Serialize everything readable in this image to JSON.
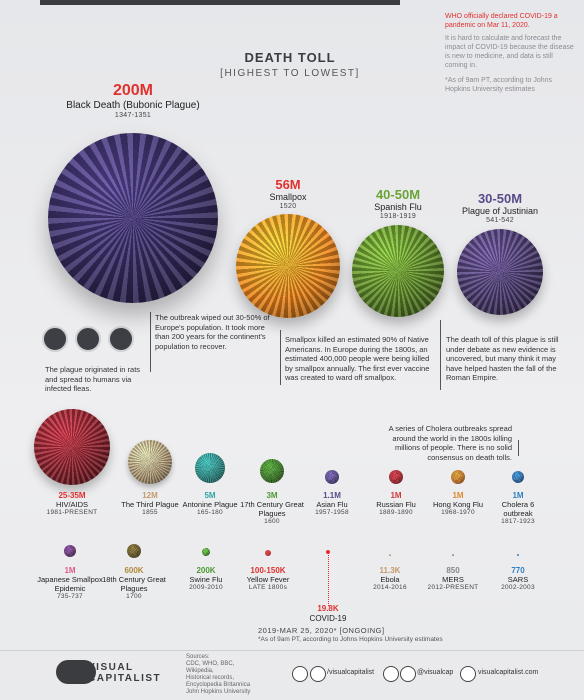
{
  "top_note": {
    "highlight": "WHO officially declared COVID-19 a pandemic on Mar 11, 2020.",
    "body": "It is hard to calculate and forecast the impact of COVID-19 because the disease is new to medicine, and data is still coming in.",
    "footnote": "*As of 9am PT, according to Johns Hopkins University estimates"
  },
  "title": "DEATH TOLL",
  "subtitle": "[HIGHEST TO LOWEST]",
  "pandemics": [
    {
      "toll": "200M",
      "name": "Black Death (Bubonic Plague)",
      "years": "1347-1351",
      "color": "#3b2f66",
      "toll_color": "#e0312f"
    },
    {
      "toll": "56M",
      "name": "Smallpox",
      "years": "1520",
      "color": "#f28a1e",
      "toll_color": "#e0312f"
    },
    {
      "toll": "40-50M",
      "name": "Spanish Flu",
      "years": "1918-1919",
      "color": "#5f8a2a",
      "toll_color": "#6aa336"
    },
    {
      "toll": "30-50M",
      "name": "Plague of Justinian",
      "years": "541-542",
      "color": "#4d3d70",
      "toll_color": "#5a4a8a"
    },
    {
      "toll": "25-35M",
      "name": "HIV/AIDS",
      "years": "1981-PRESENT",
      "color": "#8e2430",
      "toll_color": "#e0312f"
    },
    {
      "toll": "12M",
      "name": "The Third Plague",
      "years": "1855",
      "color": "#b9a27e",
      "toll_color": "#c49a6c"
    },
    {
      "toll": "5M",
      "name": "Antonine Plague",
      "years": "165-180",
      "color": "#2f8e8a",
      "toll_color": "#2ea3a0"
    },
    {
      "toll": "3M",
      "name": "17th Century Great Plagues",
      "years": "1600",
      "color": "#3f7f2a",
      "toll_color": "#4d9a33"
    },
    {
      "toll": "1.1M",
      "name": "Asian Flu",
      "years": "1957-1958",
      "color": "#5a4a8a",
      "toll_color": "#5a4a8a"
    },
    {
      "toll": "1M",
      "name": "Russian Flu",
      "years": "1889-1890",
      "color": "#b02a33",
      "toll_color": "#d23a3a"
    },
    {
      "toll": "1M",
      "name": "Hong Kong Flu",
      "years": "1968-1970",
      "color": "#d27a2a",
      "toll_color": "#e08a2a"
    },
    {
      "toll": "1M",
      "name": "Cholera 6 outbreak",
      "years": "1817-1923",
      "color": "#2f6fb0",
      "toll_color": "#2f7fc0"
    },
    {
      "toll": "1M",
      "name": "Japanese Smallpox Epidemic",
      "years": "735-737",
      "color": "#6a3a7a",
      "toll_color": "#e05a8a"
    },
    {
      "toll": "600K",
      "name": "18th Century Great Plagues",
      "years": "1700",
      "color": "#6a5a2a",
      "toll_color": "#b08a3a"
    },
    {
      "toll": "200K",
      "name": "Swine Flu",
      "years": "2009-2010",
      "color": "#4d9a33",
      "toll_color": "#4d9a33"
    },
    {
      "toll": "100-150K",
      "name": "Yellow Fever",
      "years": "LATE 1800s",
      "color": "#e0312f",
      "toll_color": "#e0312f"
    },
    {
      "toll": "11.3K",
      "name": "Ebola",
      "years": "2014-2016",
      "color": "#c49a6c",
      "toll_color": "#c49a6c"
    },
    {
      "toll": "850",
      "name": "MERS",
      "years": "2012-PRESENT",
      "color": "#888888",
      "toll_color": "#888888"
    },
    {
      "toll": "770",
      "name": "SARS",
      "years": "2002-2003",
      "color": "#2f7fc0",
      "toll_color": "#2f7fc0"
    }
  ],
  "covid": {
    "toll": "19.8K",
    "name": "COVID-19",
    "years": "2019-MAR 25, 2020* [ONGOING]",
    "footnote": "*As of 9am PT, according to Johns Hopkins University estimates"
  },
  "annotations": {
    "rats": "The plague originated in rats and spread to humans via infected fleas.",
    "europe": "The outbreak wiped out 30-50% of Europe's population. It took more than 200 years for the continent's population to recover.",
    "smallpox": "Smallpox killed an estimated 90% of Native Americans. In Europe during the 1800s, an estimated 400,000 people were being killed by smallpox annually. The first ever vaccine was created to ward off smallpox.",
    "justinian": "The death toll of this plague is still under debate as new evidence is uncovered, but many think it may have helped hasten the fall of the Roman Empire.",
    "cholera": "A series of Cholera outbreaks spread around the world in the 1800s killing millions of people. There is no solid consensus on death tolls."
  },
  "footer": {
    "logo": [
      "VISUAL",
      "CAPITALIST"
    ],
    "sources": [
      "Sources:",
      "CDC, WHO, BBC,",
      "Wikipedia,",
      "Historical records,",
      "Encyclopedia Britannica",
      "John Hopkins University"
    ],
    "social": [
      "/visualcapitalist",
      "@visualcap",
      "visualcapitalist.com"
    ]
  }
}
